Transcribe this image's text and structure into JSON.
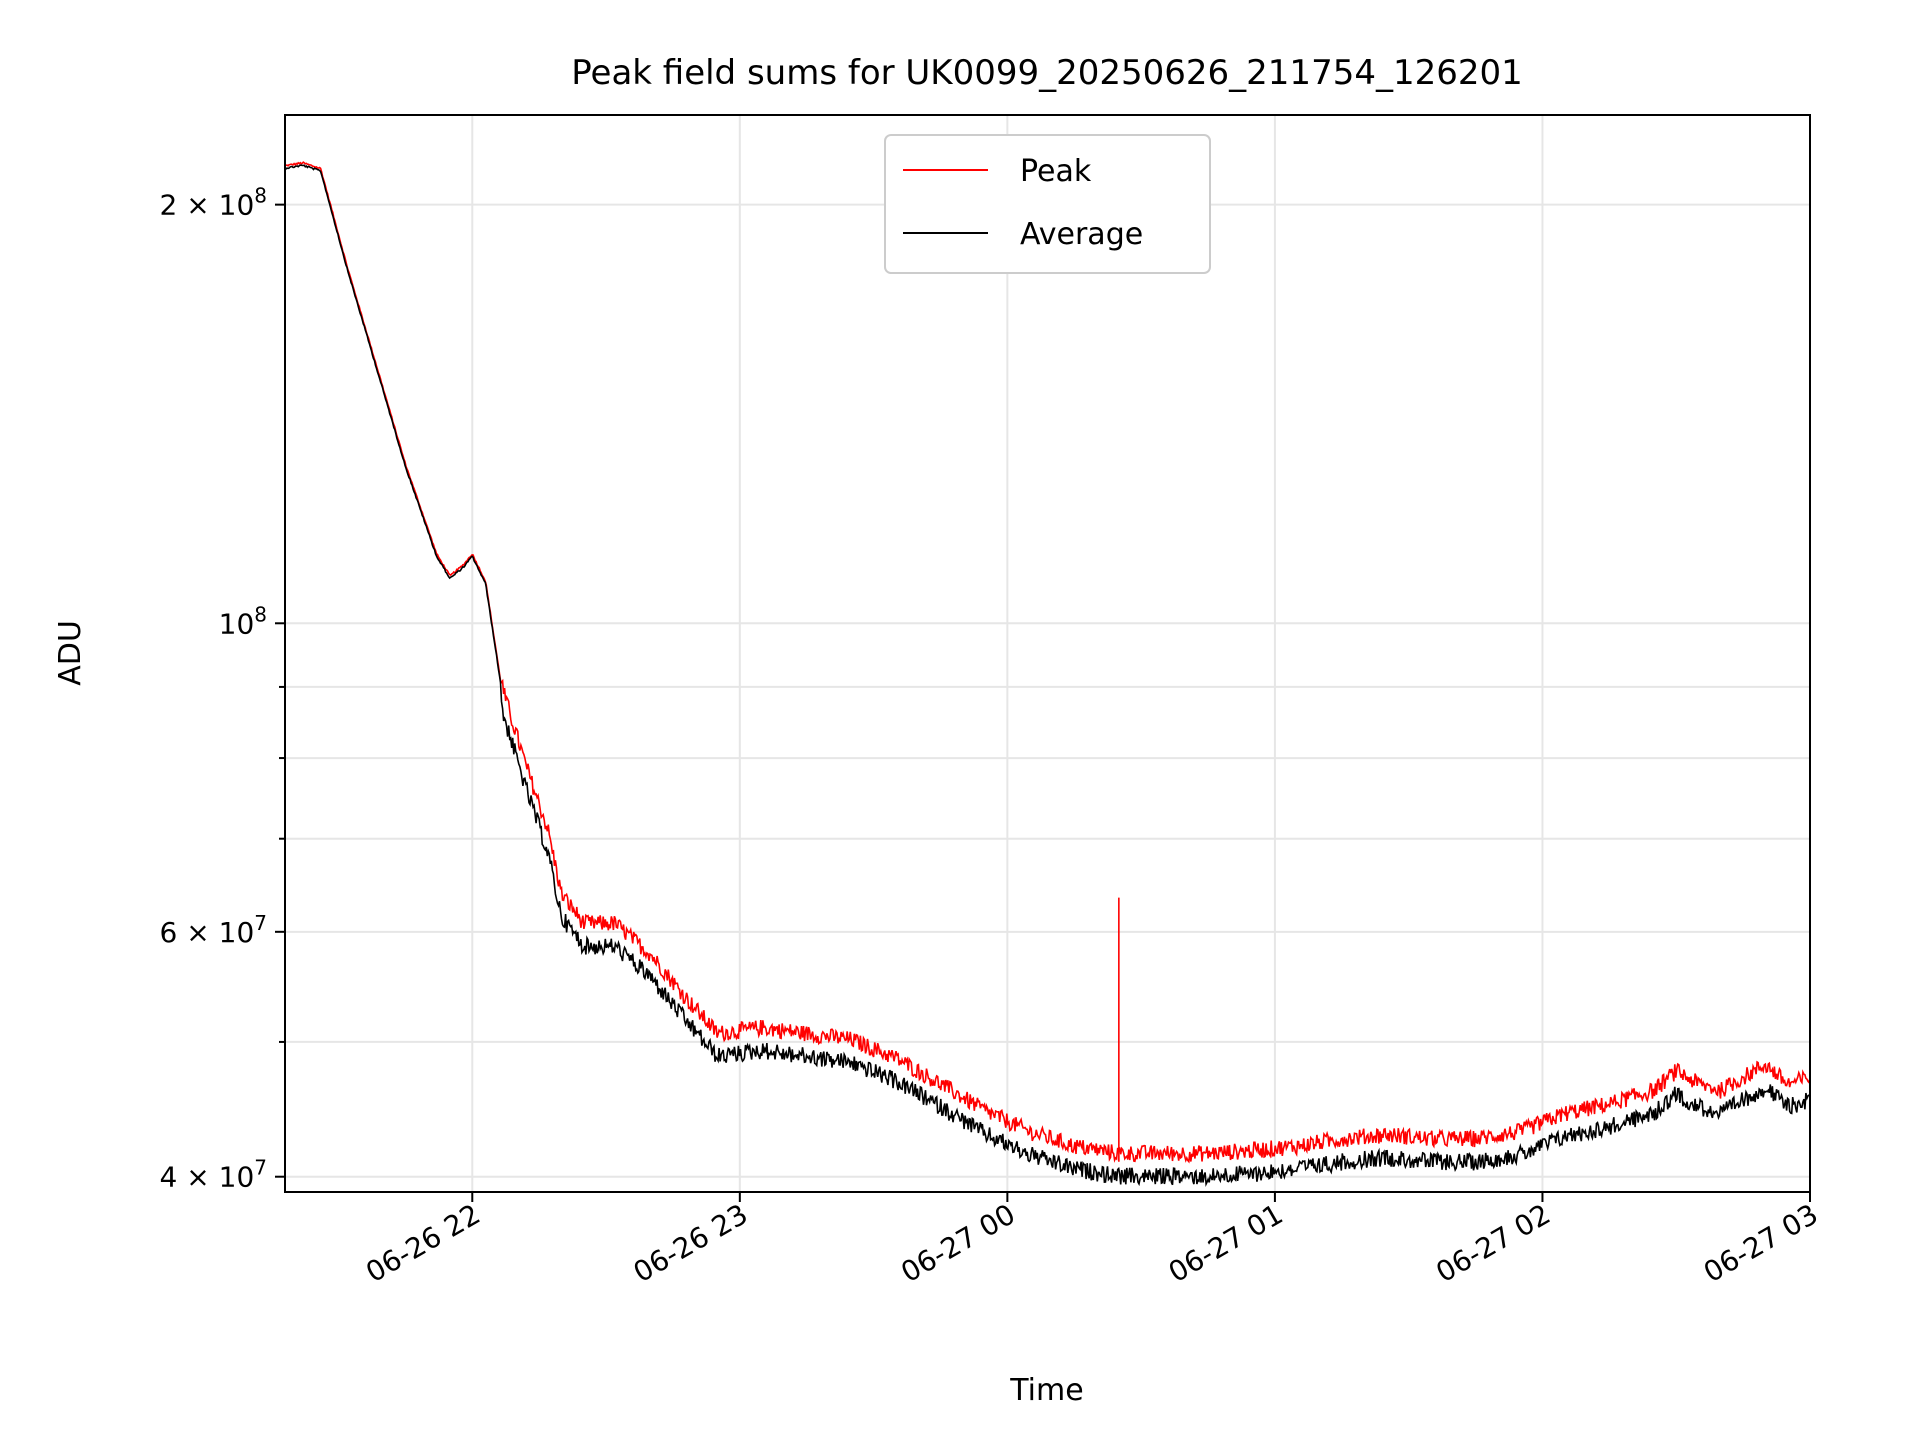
{
  "chart_data": {
    "type": "line",
    "title": "Peak field sums for UK0099_20250626_211754_126201",
    "xlabel": "Time",
    "ylabel": "ADU",
    "y_scale": "log",
    "ylim": [
      39000000,
      232000000
    ],
    "xlim": [
      "2025-06-26 21:18",
      "2025-06-27 03:00"
    ],
    "x_ticks": [
      "06-26 22",
      "06-26 23",
      "06-27 00",
      "06-27 01",
      "06-27 02",
      "06-27 03"
    ],
    "y_ticks": [
      {
        "label_base": "4 × 10",
        "label_exp": "7",
        "value": 40000000
      },
      {
        "label_base": "6 × 10",
        "label_exp": "7",
        "value": 60000000
      },
      {
        "label_base": "10",
        "label_exp": "8",
        "value": 100000000
      },
      {
        "label_base": "2 × 10",
        "label_exp": "8",
        "value": 200000000
      }
    ],
    "grid": true,
    "legend_position": "top-center",
    "series": [
      {
        "name": "Peak",
        "color": "#ff0000",
        "points": [
          [
            "2025-06-26 21:18",
            213000000
          ],
          [
            "2025-06-26 21:22",
            214000000
          ],
          [
            "2025-06-26 21:26",
            212000000
          ],
          [
            "2025-06-26 21:32",
            180000000
          ],
          [
            "2025-06-26 21:38",
            155000000
          ],
          [
            "2025-06-26 21:45",
            130000000
          ],
          [
            "2025-06-26 21:52",
            112000000
          ],
          [
            "2025-06-26 21:55",
            108000000
          ],
          [
            "2025-06-26 21:58",
            110000000
          ],
          [
            "2025-06-26 22:00",
            112000000
          ],
          [
            "2025-06-26 22:03",
            107000000
          ],
          [
            "2025-06-26 22:07",
            88000000
          ],
          [
            "2025-06-26 22:12",
            78000000
          ],
          [
            "2025-06-26 22:17",
            70000000
          ],
          [
            "2025-06-26 22:20",
            63000000
          ],
          [
            "2025-06-26 22:25",
            60000000
          ],
          [
            "2025-06-26 22:32",
            60000000
          ],
          [
            "2025-06-26 22:40",
            57000000
          ],
          [
            "2025-06-26 22:48",
            53000000
          ],
          [
            "2025-06-26 22:55",
            50000000
          ],
          [
            "2025-06-26 23:05",
            50500000
          ],
          [
            "2025-06-26 23:15",
            50000000
          ],
          [
            "2025-06-26 23:25",
            49500000
          ],
          [
            "2025-06-26 23:35",
            48000000
          ],
          [
            "2025-06-26 23:45",
            46000000
          ],
          [
            "2025-06-26 23:55",
            44000000
          ],
          [
            "2025-06-27 00:05",
            42500000
          ],
          [
            "2025-06-27 00:15",
            41500000
          ],
          [
            "2025-06-27 00:25",
            41000000
          ],
          [
            "2025-06-27 00:35",
            41000000
          ],
          [
            "2025-06-27 00:45",
            41000000
          ],
          [
            "2025-06-27 00:55",
            41200000
          ],
          [
            "2025-06-27 01:05",
            41500000
          ],
          [
            "2025-06-27 01:15",
            42000000
          ],
          [
            "2025-06-27 01:25",
            42300000
          ],
          [
            "2025-06-27 01:35",
            42000000
          ],
          [
            "2025-06-27 01:45",
            42000000
          ],
          [
            "2025-06-27 01:55",
            42500000
          ],
          [
            "2025-06-27 02:05",
            43800000
          ],
          [
            "2025-06-27 02:15",
            44500000
          ],
          [
            "2025-06-27 02:25",
            45500000
          ],
          [
            "2025-06-27 02:30",
            47000000
          ],
          [
            "2025-06-27 02:35",
            46000000
          ],
          [
            "2025-06-27 02:40",
            45500000
          ],
          [
            "2025-06-27 02:45",
            46500000
          ],
          [
            "2025-06-27 02:50",
            47500000
          ],
          [
            "2025-06-27 02:55",
            46000000
          ],
          [
            "2025-06-27 03:00",
            46500000
          ]
        ],
        "spike": {
          "x": "2025-06-27 00:25",
          "y": 63500000
        }
      },
      {
        "name": "Average",
        "color": "#000000"
      }
    ]
  }
}
